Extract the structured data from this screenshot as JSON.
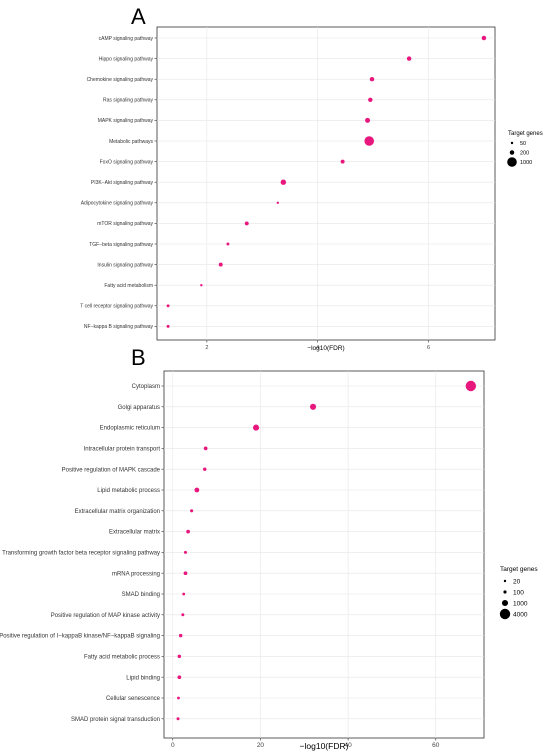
{
  "chart_data": [
    {
      "panel": "A",
      "type": "scatter",
      "xlabel": "−log10(FDR)",
      "ylabel": "",
      "xlim": [
        1.1,
        7.2
      ],
      "xticks": [
        2,
        4,
        6
      ],
      "grid": true,
      "legend_position": "right",
      "size_legend": {
        "title": "Target genes",
        "values": [
          50,
          200,
          1000
        ]
      },
      "color": "#e8177d",
      "points": [
        {
          "term": "cAMP signaling pathway",
          "x": 7.0,
          "size": 200
        },
        {
          "term": "Hippo signaling pathway",
          "x": 5.65,
          "size": 200
        },
        {
          "term": "Chemokine signaling pathway",
          "x": 4.98,
          "size": 200
        },
        {
          "term": "Ras signaling pathway",
          "x": 4.95,
          "size": 200
        },
        {
          "term": "MAPK signaling pathway",
          "x": 4.9,
          "size": 250
        },
        {
          "term": "Metabolic pathways",
          "x": 4.93,
          "size": 1000
        },
        {
          "term": "FoxO signaling pathway",
          "x": 4.45,
          "size": 150
        },
        {
          "term": "PI3K−Akt signaling pathway",
          "x": 3.38,
          "size": 300
        },
        {
          "term": "Adipocytokine signaling pathway",
          "x": 3.28,
          "size": 50
        },
        {
          "term": "mTOR signaling pathway",
          "x": 2.72,
          "size": 150
        },
        {
          "term": "TGF−beta signaling pathway",
          "x": 2.38,
          "size": 80
        },
        {
          "term": "Insulin signaling pathway",
          "x": 2.25,
          "size": 150
        },
        {
          "term": "Fatty acid metabolism",
          "x": 1.9,
          "size": 50
        },
        {
          "term": "T cell receptor signaling pathway",
          "x": 1.3,
          "size": 80
        },
        {
          "term": "NF−kappa B signaling pathway",
          "x": 1.3,
          "size": 80
        }
      ]
    },
    {
      "panel": "B",
      "type": "scatter",
      "xlabel": "−log10(FDR)",
      "ylabel": "",
      "xlim": [
        -2,
        71
      ],
      "xticks": [
        0,
        20,
        40,
        60
      ],
      "grid": true,
      "legend_position": "right",
      "size_legend": {
        "title": "Target genes",
        "values": [
          20,
          100,
          1000,
          4000
        ]
      },
      "color": "#e8177d",
      "points": [
        {
          "term": "Cytoplasm",
          "x": 68.0,
          "size": 4000
        },
        {
          "term": "Golgi apparatus",
          "x": 32.0,
          "size": 1000
        },
        {
          "term": "Endoplasmic reticulum",
          "x": 19.0,
          "size": 1000
        },
        {
          "term": "Intracellular protein transport",
          "x": 7.5,
          "size": 200
        },
        {
          "term": "Positive regulation of MAPK cascade",
          "x": 7.3,
          "size": 150
        },
        {
          "term": "Lipid metabolic process",
          "x": 5.5,
          "size": 500
        },
        {
          "term": "Extracellular matrix organization",
          "x": 4.3,
          "size": 100
        },
        {
          "term": "Extracellular matrix",
          "x": 3.5,
          "size": 200
        },
        {
          "term": "Transforming growth factor beta receptor signaling pathway",
          "x": 2.9,
          "size": 80
        },
        {
          "term": "mRNA processing",
          "x": 2.9,
          "size": 200
        },
        {
          "term": "SMAD binding",
          "x": 2.5,
          "size": 60
        },
        {
          "term": "Positive regulation of MAP kinase activity",
          "x": 2.3,
          "size": 80
        },
        {
          "term": "Positive regulation of I−kappaB kinase/NF−kappaB signaling",
          "x": 1.8,
          "size": 150
        },
        {
          "term": "Fatty acid metabolic process",
          "x": 1.5,
          "size": 150
        },
        {
          "term": "Lipid binding",
          "x": 1.5,
          "size": 200
        },
        {
          "term": "Cellular senescence",
          "x": 1.3,
          "size": 60
        },
        {
          "term": "SMAD protein signal transduction",
          "x": 1.2,
          "size": 80
        }
      ]
    }
  ]
}
